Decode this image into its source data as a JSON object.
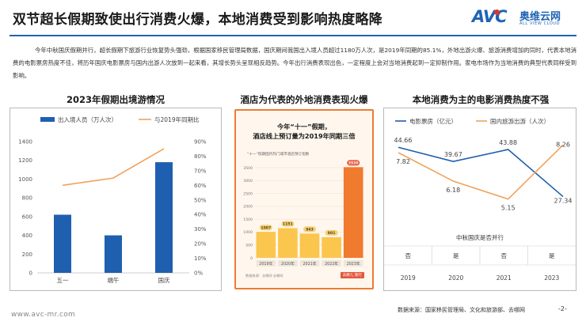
{
  "header": {
    "title": "双节超长假期致使出行消费火爆，本地消费受到影响热度略降",
    "logo_avc": "AVC",
    "logo_cn": "奥维云网",
    "logo_en": "ALL VIEW CLOUD"
  },
  "intro": "今年中秋国庆假期并行，超长假期下旅游行业恢复势头强劲，根据国家移民管理局数据，国庆期间我国出入境人员超过1180万人次，是2019年同期的85.1%，外地出游火爆、旅游消费增加的同时，代表本地消费的电影票房热度不佳，将历年国庆电影票房与国内出游人次放到一起来看，其增长势头呈现相反趋势。今年出行消费表现出色，一定程度上会对当地消费起到一定抑制作用。家电市场作为当地消费的典型代表同样受到影响。",
  "footer": {
    "source": "数据来源：国家移民管理局、文化和旅游部、去哪网",
    "page": "-2-",
    "website": "www.avc-mr.com"
  },
  "colors": {
    "brand_blue": "#1e64b4",
    "bar_blue": "#1f5fb0",
    "line_orange": "#f0a35c",
    "hotel_orange": "#f07a2e",
    "hotel_bar": "#fbc64e"
  },
  "chart_data": [
    {
      "type": "bar",
      "title": "2023年假期出境游情况",
      "categories": [
        "五一",
        "端午",
        "国庆"
      ],
      "series": [
        {
          "name": "出入境人员（万人次）",
          "values": [
            620,
            400,
            1180
          ],
          "axis": "left"
        },
        {
          "name": "与2019年同期比",
          "values": [
            60,
            65,
            85.1
          ],
          "axis": "right",
          "render": "line"
        }
      ],
      "y_ticks": [
        "0",
        "200",
        "400",
        "600",
        "800",
        "1000",
        "1200",
        "1400"
      ],
      "y2_ticks": [
        "0%",
        "10%",
        "20%",
        "30%",
        "40%",
        "50%",
        "60%",
        "70%",
        "80%",
        "90%"
      ],
      "ylim": [
        0,
        1400
      ],
      "y2lim": [
        0,
        90
      ],
      "grid": false,
      "legend": "top"
    },
    {
      "type": "bar",
      "title": "酒店为代表的外地消费表现火爆",
      "headline_1": "今年“十一”假期，",
      "headline_2": "酒店线上预订量为2019年同期三倍",
      "subtitle": "“十一”假期国内热门城市酒店预订指数",
      "categories": [
        "2019年",
        "2020年",
        "2021年",
        "2022年",
        "2023年"
      ],
      "values": [
        1007,
        1151,
        943,
        801,
        3520
      ],
      "value_labels": [
        "1007",
        "1151",
        "943",
        "801",
        "3520"
      ],
      "y_ticks": [
        "0",
        "500",
        "1000",
        "1500",
        "2000",
        "2500",
        "3000",
        "3500"
      ],
      "ylim": [
        0,
        3500
      ],
      "footnote": "数据来源：去哪网    去哪网",
      "brand": "去哪儿 旅行"
    },
    {
      "type": "line",
      "title": "本地消费为主的电影消费热度不强",
      "categories": [
        "2019",
        "2020",
        "2021",
        "2023"
      ],
      "series": [
        {
          "name": "电影票房（亿元）",
          "values": [
            44.66,
            39.67,
            43.88,
            27.34
          ],
          "labels": [
            "44.66",
            "39.67",
            "43.88",
            "27.34"
          ]
        },
        {
          "name": "国内旅游出游（人次）",
          "values": [
            7.82,
            6.18,
            5.15,
            8.26
          ],
          "labels": [
            "7.82",
            "6.18",
            "5.15",
            "8.26"
          ]
        }
      ],
      "table_title": "中秋国庆是否并行",
      "table_row": [
        "否",
        "是",
        "否",
        "是"
      ],
      "legend": "top"
    }
  ]
}
